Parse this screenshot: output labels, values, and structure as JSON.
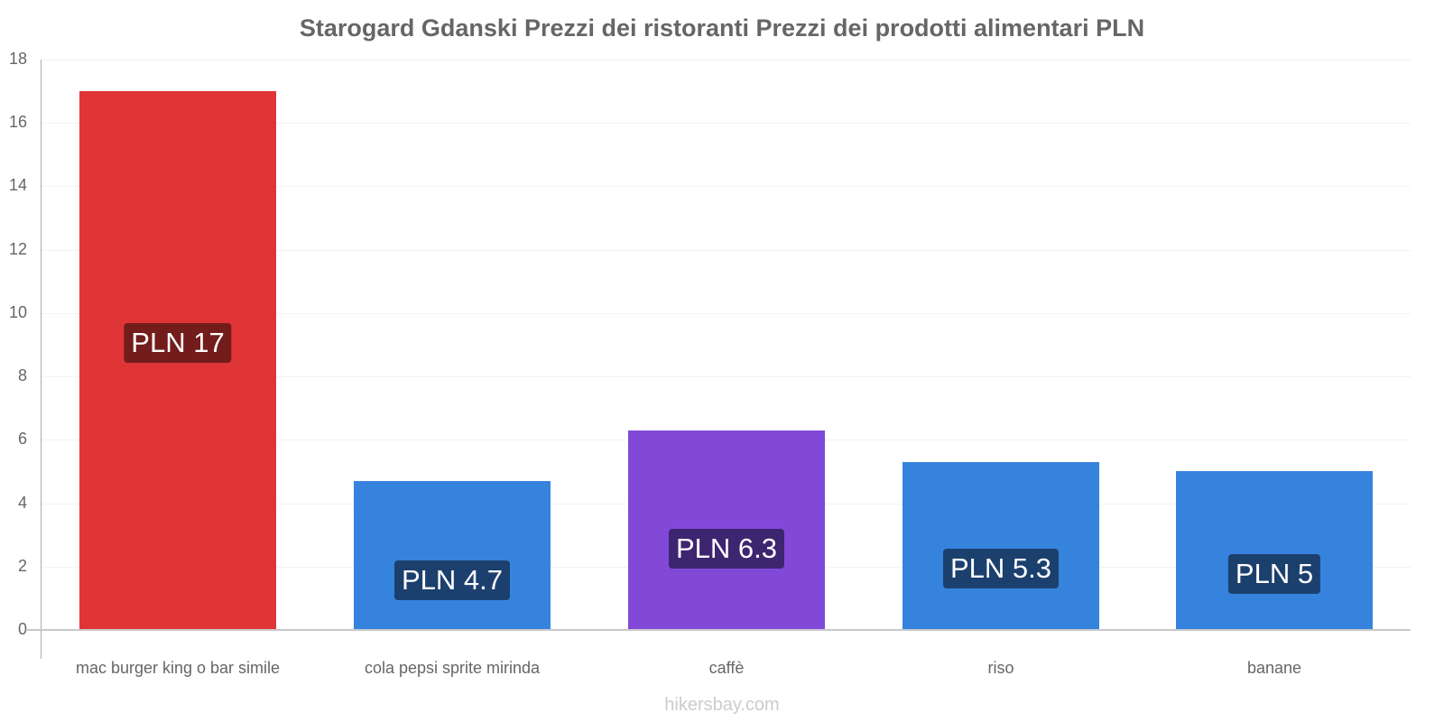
{
  "title": "Starogard Gdanski Prezzi dei ristoranti Prezzi dei prodotti alimentari PLN",
  "footer": "hikersbay.com",
  "y_ticks": [
    "0",
    "2",
    "4",
    "6",
    "8",
    "10",
    "12",
    "14",
    "16",
    "18"
  ],
  "bars": [
    {
      "category": "mac burger king o bar simile",
      "value": 17,
      "label": "PLN 17",
      "color": "#e03536",
      "label_bg": "#731c1c"
    },
    {
      "category": "cola pepsi sprite mirinda",
      "value": 4.7,
      "label": "PLN 4.7",
      "color": "#3683dd",
      "label_bg": "#1c406e"
    },
    {
      "category": "caffè",
      "value": 6.3,
      "label": "PLN 6.3",
      "color": "#8249d9",
      "label_bg": "#3e2570"
    },
    {
      "category": "riso",
      "value": 5.3,
      "label": "PLN 5.3",
      "color": "#3683dd",
      "label_bg": "#1c406e"
    },
    {
      "category": "banane",
      "value": 5,
      "label": "PLN 5",
      "color": "#3683dd",
      "label_bg": "#1c406e"
    }
  ],
  "chart_data": {
    "type": "bar",
    "title": "Starogard Gdanski Prezzi dei ristoranti Prezzi dei prodotti alimentari PLN",
    "categories": [
      "mac burger king o bar simile",
      "cola pepsi sprite mirinda",
      "caffè",
      "riso",
      "banane"
    ],
    "values": [
      17,
      4.7,
      6.3,
      5.3,
      5
    ],
    "data_labels": [
      "PLN 17",
      "PLN 4.7",
      "PLN 6.3",
      "PLN 5.3",
      "PLN 5"
    ],
    "colors": [
      "#e03536",
      "#3683dd",
      "#8249d9",
      "#3683dd",
      "#3683dd"
    ],
    "xlabel": "",
    "ylabel": "",
    "ylim": [
      0,
      18
    ],
    "yticks": [
      0,
      2,
      4,
      6,
      8,
      10,
      12,
      14,
      16,
      18
    ],
    "grid": true,
    "legend": "none"
  }
}
